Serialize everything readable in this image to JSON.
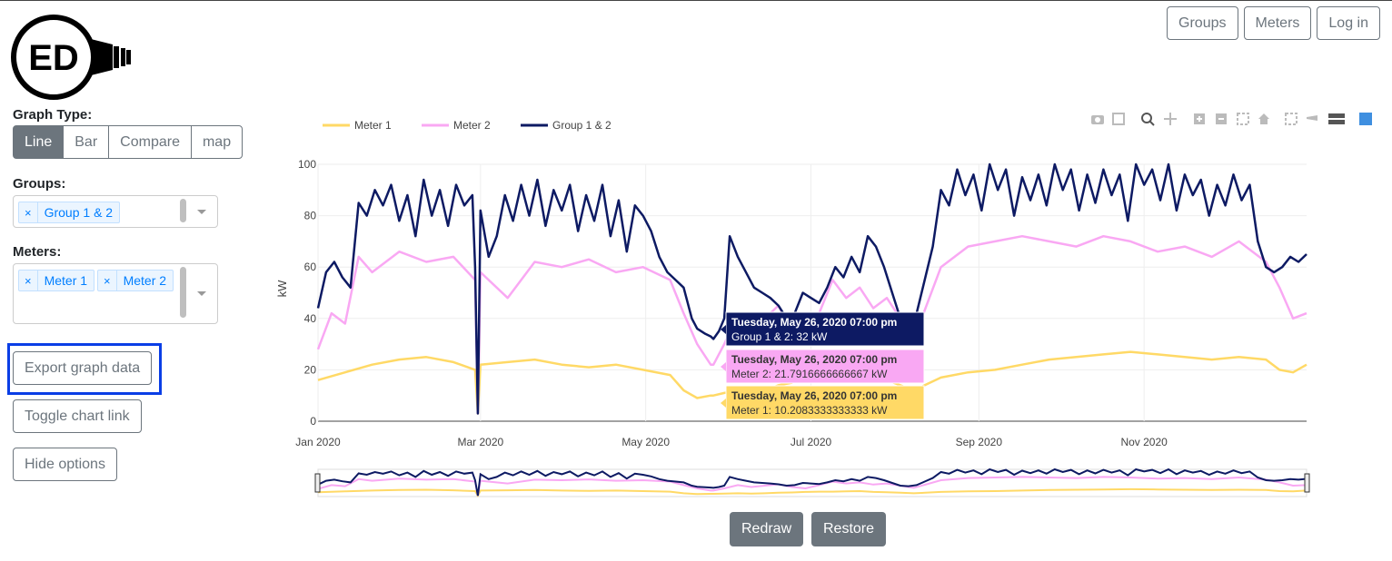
{
  "logo": {
    "text": "ED"
  },
  "nav": {
    "groups": "Groups",
    "meters": "Meters",
    "login": "Log in"
  },
  "sidebar": {
    "graph_type_label": "Graph Type:",
    "graph_types": [
      "Line",
      "Bar",
      "Compare",
      "map"
    ],
    "graph_type_selected": "Line",
    "groups_label": "Groups:",
    "groups_selected": [
      "Group 1 & 2"
    ],
    "meters_label": "Meters:",
    "meters_selected": [
      "Meter 1",
      "Meter 2"
    ],
    "remove_glyph": "×",
    "export_button": "Export graph data",
    "toggle_link_button": "Toggle chart link",
    "hide_options_button": "Hide options"
  },
  "chart_data": {
    "type": "line",
    "ylabel": "kW",
    "ylim": [
      0,
      100
    ],
    "yticks": [
      0,
      20,
      40,
      60,
      80,
      100
    ],
    "xticks": [
      "Jan 2020",
      "Mar 2020",
      "May 2020",
      "Jul 2020",
      "Sep 2020",
      "Nov 2020"
    ],
    "xtick_days": [
      0,
      60,
      121,
      182,
      244,
      305
    ],
    "x_days_range": [
      0,
      365
    ],
    "grid": true,
    "legend_position": "top-left",
    "series": [
      {
        "name": "Meter 1",
        "color": "#ffd966",
        "days": [
          0,
          10,
          20,
          30,
          40,
          50,
          58,
          59,
          60,
          70,
          80,
          90,
          100,
          110,
          120,
          130,
          135,
          140,
          145,
          146,
          150,
          155,
          160,
          165,
          170,
          175,
          180,
          185,
          190,
          195,
          200,
          205,
          210,
          215,
          220,
          230,
          240,
          250,
          260,
          270,
          280,
          290,
          300,
          310,
          320,
          330,
          340,
          350,
          355,
          360,
          365
        ],
        "values": [
          16,
          19,
          22,
          24,
          25,
          23,
          20,
          3,
          22,
          23,
          24,
          22,
          21,
          22,
          20,
          18,
          12,
          9,
          10,
          10,
          11,
          12,
          11,
          12,
          14,
          15,
          17,
          18,
          18,
          19,
          20,
          17,
          16,
          14,
          12,
          17,
          19,
          20,
          22,
          24,
          25,
          26,
          27,
          26,
          25,
          24,
          25,
          24,
          20,
          19,
          22
        ]
      },
      {
        "name": "Meter 2",
        "color": "#f9a8f3",
        "days": [
          0,
          5,
          10,
          15,
          20,
          30,
          40,
          50,
          58,
          59,
          60,
          70,
          80,
          90,
          100,
          110,
          120,
          130,
          135,
          140,
          145,
          146,
          150,
          155,
          160,
          165,
          170,
          175,
          180,
          185,
          190,
          195,
          200,
          205,
          210,
          215,
          220,
          230,
          240,
          250,
          260,
          270,
          280,
          290,
          300,
          310,
          320,
          330,
          340,
          350,
          355,
          360,
          365
        ],
        "values": [
          28,
          42,
          38,
          64,
          58,
          66,
          62,
          64,
          55,
          3,
          58,
          48,
          62,
          60,
          63,
          58,
          60,
          55,
          42,
          30,
          22,
          22,
          30,
          42,
          35,
          40,
          45,
          35,
          30,
          42,
          55,
          48,
          52,
          44,
          48,
          40,
          32,
          60,
          68,
          70,
          72,
          70,
          68,
          72,
          70,
          66,
          68,
          64,
          70,
          62,
          52,
          40,
          42
        ]
      },
      {
        "name": "Group 1 & 2",
        "color": "#0d1a63",
        "days": [
          0,
          3,
          6,
          9,
          12,
          15,
          18,
          21,
          24,
          27,
          30,
          33,
          36,
          39,
          42,
          45,
          48,
          51,
          54,
          57,
          58,
          59,
          60,
          63,
          66,
          69,
          72,
          75,
          78,
          81,
          84,
          87,
          90,
          93,
          96,
          99,
          102,
          105,
          108,
          111,
          114,
          117,
          120,
          123,
          126,
          129,
          132,
          135,
          138,
          140,
          143,
          145,
          146,
          148,
          150,
          152,
          155,
          158,
          161,
          164,
          167,
          170,
          173,
          176,
          179,
          182,
          185,
          188,
          191,
          194,
          197,
          200,
          203,
          206,
          209,
          212,
          215,
          218,
          221,
          224,
          227,
          230,
          233,
          236,
          239,
          242,
          245,
          248,
          251,
          254,
          257,
          260,
          263,
          266,
          269,
          272,
          275,
          278,
          281,
          284,
          287,
          290,
          293,
          296,
          299,
          302,
          305,
          308,
          311,
          314,
          317,
          320,
          323,
          326,
          329,
          332,
          335,
          338,
          341,
          344,
          347,
          350,
          353,
          356,
          359,
          362,
          365
        ],
        "values": [
          44,
          58,
          62,
          56,
          52,
          85,
          80,
          90,
          84,
          92,
          78,
          88,
          72,
          94,
          80,
          90,
          76,
          92,
          84,
          88,
          60,
          3,
          82,
          64,
          72,
          88,
          78,
          92,
          80,
          94,
          76,
          90,
          82,
          92,
          74,
          88,
          78,
          92,
          72,
          86,
          66,
          84,
          80,
          74,
          64,
          58,
          55,
          52,
          40,
          36,
          34,
          33,
          32,
          35,
          40,
          72,
          64,
          58,
          52,
          50,
          48,
          45,
          40,
          42,
          50,
          48,
          46,
          52,
          60,
          56,
          64,
          58,
          72,
          68,
          60,
          50,
          40,
          38,
          42,
          55,
          68,
          90,
          84,
          98,
          88,
          96,
          82,
          100,
          90,
          98,
          80,
          95,
          86,
          96,
          84,
          100,
          90,
          98,
          82,
          96,
          85,
          98,
          88,
          96,
          78,
          100,
          92,
          98,
          86,
          100,
          82,
          96,
          88,
          94,
          80,
          92,
          84,
          96,
          86,
          92,
          70,
          60,
          58,
          60,
          64,
          62,
          65
        ]
      }
    ],
    "tooltips": [
      {
        "series": "Group 1 & 2",
        "title": "Tuesday, May 26, 2020 07:00 pm",
        "text": "Group 1 & 2: 32 kW",
        "bg": "#0d1a63",
        "fg": "#ffffff"
      },
      {
        "series": "Meter 2",
        "title": "Tuesday, May 26, 2020 07:00 pm",
        "text": "Meter 2: 21.7916666666667 kW",
        "bg": "#f9a8f3",
        "fg": "#333333"
      },
      {
        "series": "Meter 1",
        "title": "Tuesday, May 26, 2020 07:00 pm",
        "text": "Meter 1: 10.2083333333333 kW",
        "bg": "#ffd966",
        "fg": "#333333"
      }
    ]
  },
  "toolbar_icons": [
    "camera-icon",
    "save-icon",
    "zoom-icon",
    "pan-icon",
    "zoom-in-icon",
    "zoom-out-icon",
    "autoscale-icon",
    "home-icon",
    "spike-lines-icon",
    "hover-closest-icon",
    "hover-compare-icon",
    "plotly-logo-icon"
  ],
  "controls": {
    "redraw": "Redraw",
    "restore": "Restore"
  }
}
